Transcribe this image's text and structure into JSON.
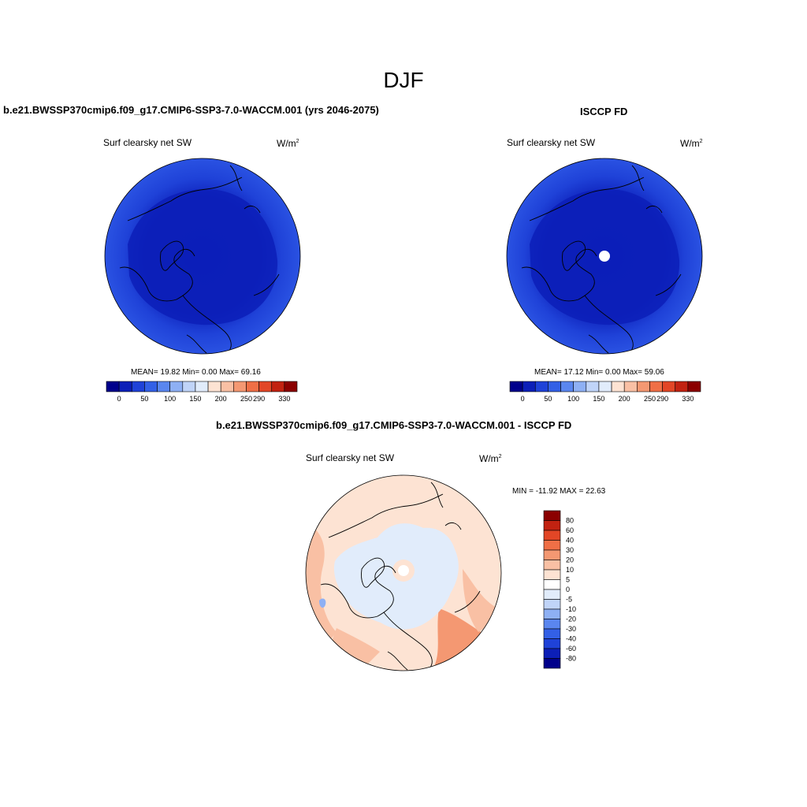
{
  "suptitle": "DJF",
  "panels": {
    "model": {
      "title": "b.e21.BWSSP370cmip6.f09_g17.CMIP6-SSP3-7.0-WACCM.001 (yrs 2046-2075)",
      "variable": "Surf clearsky net SW",
      "units": "W/m",
      "units_exp": "2",
      "stats": "MEAN=  19.82  Min=   0.00  Max=  69.16",
      "colorbar_labels": [
        "0",
        "50",
        "100",
        "150",
        "200",
        "250",
        "290",
        "330"
      ]
    },
    "obs": {
      "title": "ISCCP FD",
      "variable": "Surf clearsky net SW",
      "units": "W/m",
      "units_exp": "2",
      "stats": "MEAN=  17.12  Min=   0.00  Max=  59.06",
      "colorbar_labels": [
        "0",
        "50",
        "100",
        "150",
        "200",
        "250",
        "290",
        "330"
      ]
    },
    "diff": {
      "title": "b.e21.BWSSP370cmip6.f09_g17.CMIP6-SSP3-7.0-WACCM.001 - ISCCP FD",
      "variable": "Surf clearsky net SW",
      "units": "W/m",
      "units_exp": "2",
      "stats": "MIN = -11.92 MAX =  22.63",
      "colorbar_labels": [
        "80",
        "60",
        "40",
        "30",
        "20",
        "10",
        "5",
        "0",
        "-5",
        "-10",
        "-20",
        "-30",
        "-40",
        "-60",
        "-80"
      ]
    }
  },
  "colors": {
    "abs_scale": [
      "#00008b",
      "#0c1fb8",
      "#1f42d8",
      "#3360e6",
      "#5a86ef",
      "#8eb0f4",
      "#c0d4f8",
      "#e1ecfb",
      "#fde3d3",
      "#f9c0a4",
      "#f49872",
      "#ef6f46",
      "#e24626",
      "#c22211",
      "#8b0000"
    ],
    "diff_scale_top_to_bottom": [
      "#8b0000",
      "#c22211",
      "#e24626",
      "#ef6f46",
      "#f49872",
      "#f9c0a4",
      "#fde3d3",
      "#ffffff",
      "#e1ecfb",
      "#c0d4f8",
      "#8eb0f4",
      "#5a86ef",
      "#3360e6",
      "#1f42d8",
      "#0c1fb8",
      "#00008b"
    ]
  }
}
